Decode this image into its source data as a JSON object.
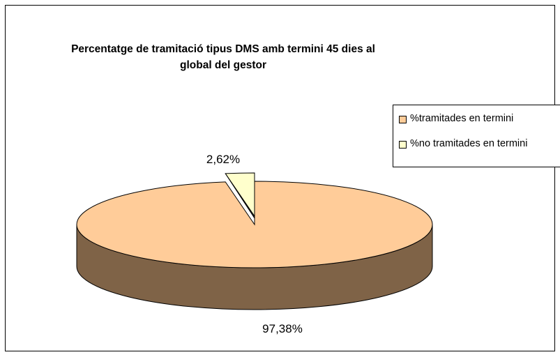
{
  "chart_data": {
    "type": "pie",
    "title": "Percentatge de tramitació tipus DMS amb termini 45 dies al global del gestor",
    "categories": [
      "%tramitades en termini",
      "%no tramitades en termini"
    ],
    "values": [
      97.38,
      2.62
    ],
    "value_labels": [
      "97,38%",
      "2,62%"
    ],
    "colors": [
      "#ffcc99",
      "#ffffcc"
    ],
    "side_color": "#7f6347",
    "legend": "right"
  }
}
